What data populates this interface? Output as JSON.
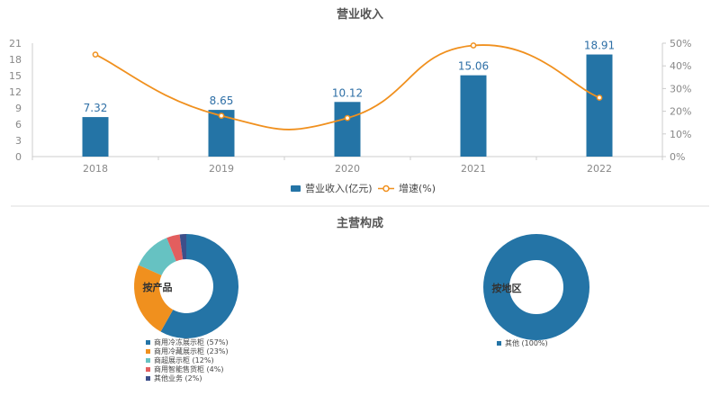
{
  "chart_data": [
    {
      "type": "bar+line",
      "title": "营业收入",
      "categories": [
        "2018",
        "2019",
        "2020",
        "2021",
        "2022"
      ],
      "series": [
        {
          "name": "营业收入(亿元)",
          "type": "bar",
          "axis": "left",
          "values": [
            7.32,
            8.65,
            10.12,
            15.06,
            18.91
          ],
          "color": "#2474a6"
        },
        {
          "name": "增速(%)",
          "type": "line",
          "smooth": true,
          "axis": "right",
          "values": [
            45,
            18,
            17,
            49,
            26
          ],
          "color": "#f0901e"
        }
      ],
      "ylim": [
        0,
        21
      ],
      "yticks": [
        "0",
        "3",
        "6",
        "9",
        "12",
        "15",
        "18",
        "21"
      ],
      "y2lim": [
        0,
        50
      ],
      "y2ticks": [
        "0%",
        "10%",
        "20%",
        "30%",
        "40%",
        "50%"
      ],
      "legend": "bottom-center"
    },
    {
      "section_title": "主营构成",
      "type": "pie",
      "center_label": "按产品",
      "slices": [
        {
          "label": "商用冷冻展示柜 (57%)",
          "value": 57,
          "color": "#2474a6"
        },
        {
          "label": "商用冷藏展示柜 (23%)",
          "value": 23,
          "color": "#f0901e"
        },
        {
          "label": "商超展示柜 (12%)",
          "value": 12,
          "color": "#66c2c2"
        },
        {
          "label": "商用智能售货柜 (4%)",
          "value": 4,
          "color": "#e35e5e"
        },
        {
          "label": "其他业务 (2%)",
          "value": 2,
          "color": "#3d4f8a"
        }
      ]
    },
    {
      "type": "pie",
      "center_label": "按地区",
      "slices": [
        {
          "label": "其他 (100%)",
          "value": 100,
          "color": "#2474a6"
        }
      ]
    }
  ]
}
